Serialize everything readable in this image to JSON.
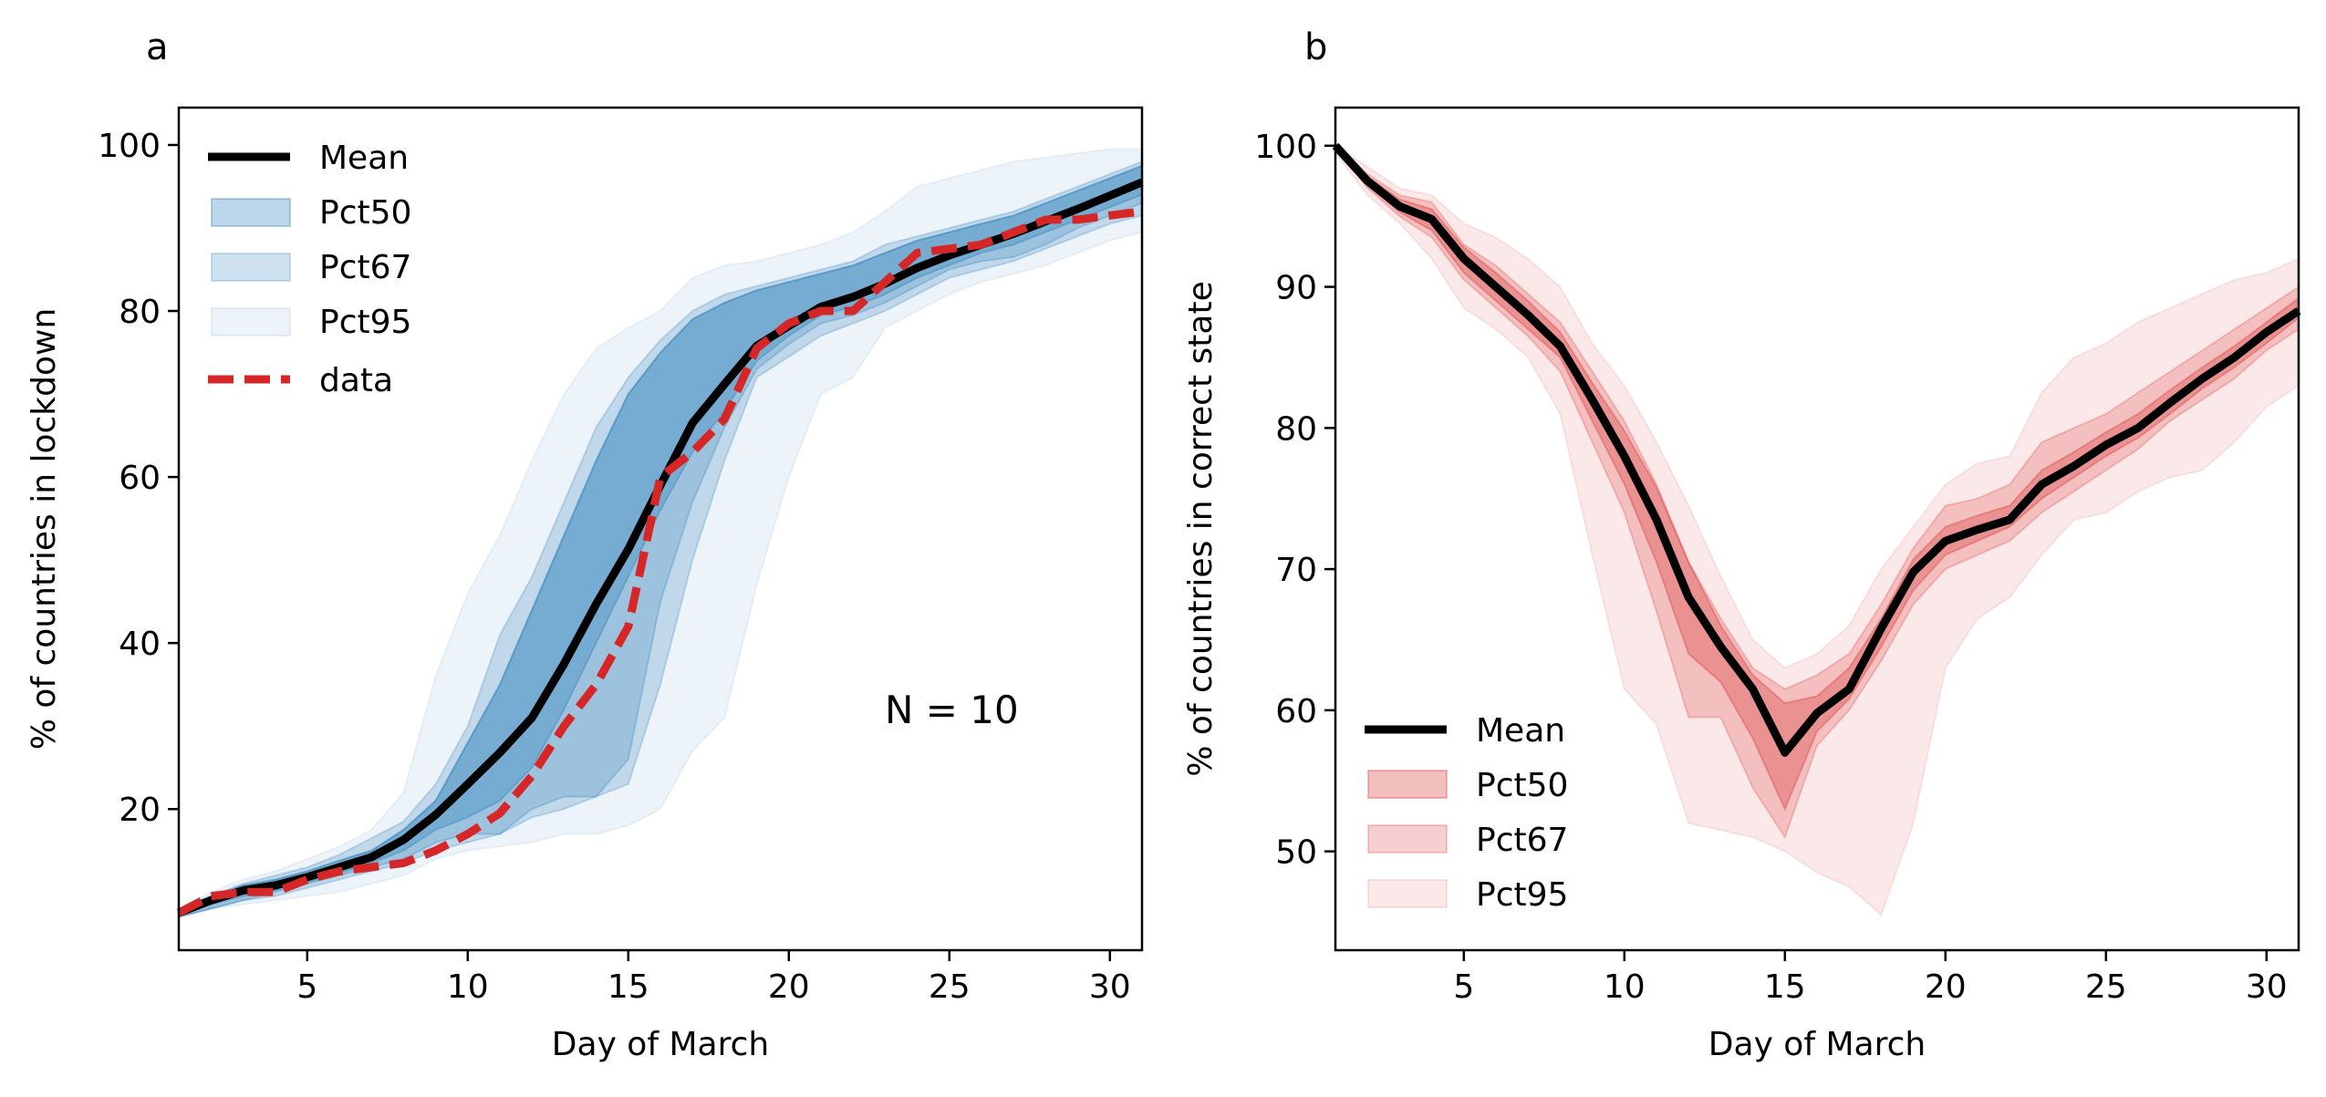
{
  "colors": {
    "mean": "#000000",
    "data_line": "#d62728",
    "blue_band": "#1f77b4",
    "red_band": "#d62728",
    "axes": "#000000"
  },
  "chart_data": [
    {
      "type": "area",
      "panel_label": "a",
      "xlabel": "Day of March",
      "ylabel": "% of countries in lockdown",
      "xlim": [
        1,
        31
      ],
      "ylim": [
        3,
        104.5
      ],
      "xticks": [
        5,
        10,
        15,
        20,
        25,
        30
      ],
      "yticks": [
        20,
        40,
        60,
        80,
        100
      ],
      "annotation": "N = 10",
      "legend_position": "upper-left",
      "band_color": "#1f77b4",
      "x": [
        1,
        2,
        3,
        4,
        5,
        6,
        7,
        8,
        9,
        10,
        11,
        12,
        13,
        14,
        15,
        16,
        17,
        18,
        19,
        20,
        21,
        22,
        23,
        24,
        25,
        26,
        27,
        28,
        29,
        30,
        31
      ],
      "mean": {
        "name": "Mean",
        "values": [
          7.5,
          9,
          10.2,
          10.8,
          11.8,
          13,
          14.2,
          16.3,
          19.3,
          23,
          26.8,
          31,
          37.5,
          44.7,
          51.3,
          59,
          66.5,
          71.2,
          75.8,
          78.2,
          80.5,
          81.7,
          83.3,
          85.2,
          86.7,
          88,
          89.3,
          90.8,
          92.3,
          93.9,
          95.5
        ]
      },
      "series": [
        {
          "name": "data",
          "values": [
            7.5,
            9.5,
            10,
            10,
            11.5,
            12.5,
            13,
            13.5,
            15,
            17,
            19.5,
            24,
            30,
            35,
            42,
            60,
            63,
            67,
            75.5,
            78.5,
            80,
            80,
            83.5,
            87,
            87.5,
            88,
            89.5,
            91,
            91,
            91.5,
            92
          ]
        }
      ],
      "bands": [
        {
          "name": "Pct95",
          "opacity": 0.08,
          "lower": [
            7,
            8,
            8.5,
            9,
            9.5,
            10,
            11,
            12,
            14,
            15,
            15.5,
            16,
            17,
            17,
            18,
            20,
            27,
            31,
            47,
            60,
            70,
            72,
            78,
            80,
            82,
            83.5,
            84.5,
            85.5,
            87,
            88.5,
            89.5
          ],
          "upper": [
            8,
            10,
            11.5,
            12.5,
            14,
            15.5,
            17.5,
            22,
            36,
            46,
            53,
            62,
            70,
            75.5,
            78,
            80,
            84,
            85.5,
            86,
            87,
            88,
            89.5,
            92,
            95,
            96,
            97,
            98,
            98.5,
            99,
            99.5,
            99.5
          ]
        },
        {
          "name": "Pct67",
          "opacity": 0.22,
          "lower": [
            7,
            8,
            9,
            9.5,
            10.5,
            11.5,
            12.5,
            13.5,
            15,
            16,
            17,
            19,
            20,
            21.5,
            23,
            35,
            50,
            62,
            72,
            74.5,
            77,
            78.5,
            80,
            82,
            84,
            85,
            86,
            87.5,
            89,
            90.5,
            91.5
          ],
          "upper": [
            8,
            9.5,
            11,
            12,
            13,
            14.5,
            16.5,
            18.5,
            23,
            30,
            41,
            48,
            57,
            66,
            72,
            76.5,
            80,
            82,
            83,
            84,
            85,
            86,
            88,
            89,
            90,
            91,
            92,
            93.5,
            95,
            96.5,
            98
          ]
        },
        {
          "name": "Pct50",
          "opacity": 0.3,
          "lower": [
            7,
            8,
            9,
            10,
            11,
            12,
            13,
            14,
            16,
            17,
            17,
            20,
            21.5,
            21.5,
            26,
            45,
            57,
            66,
            73,
            76,
            78.5,
            79.5,
            81,
            83,
            85,
            86,
            86.5,
            88,
            90,
            91.5,
            93
          ]
        },
        {
          "name": "Pct50-core",
          "opacity": 0.3,
          "lower": [
            7.2,
            8.5,
            9.5,
            10.2,
            11.2,
            12.3,
            13.5,
            15,
            17.5,
            19,
            21,
            25,
            32,
            40,
            48,
            56,
            63,
            68,
            74,
            77,
            79.5,
            80.5,
            82,
            84,
            85.5,
            87,
            88,
            89.5,
            91,
            92.5,
            94
          ],
          "upper": [
            7.8,
            9.5,
            10.8,
            11.5,
            12.5,
            13.8,
            15,
            17.5,
            21,
            28,
            35,
            44,
            53,
            62,
            70,
            75,
            79,
            81,
            82.5,
            83.5,
            84.5,
            85.5,
            87,
            88.5,
            89.5,
            90.5,
            91.5,
            93,
            94.5,
            96,
            97.5
          ]
        }
      ],
      "legend": [
        "Mean",
        "Pct50",
        "Pct67",
        "Pct95",
        "data"
      ]
    },
    {
      "type": "area",
      "panel_label": "b",
      "xlabel": "Day of March",
      "ylabel": "% of countries in correct state",
      "xlim": [
        1,
        31
      ],
      "ylim": [
        43,
        102.7
      ],
      "xticks": [
        5,
        10,
        15,
        20,
        25,
        30
      ],
      "yticks": [
        50,
        60,
        70,
        80,
        90,
        100
      ],
      "legend_position": "lower-left",
      "band_color": "#d62728",
      "x": [
        1,
        2,
        3,
        4,
        5,
        6,
        7,
        8,
        9,
        10,
        11,
        12,
        13,
        14,
        15,
        16,
        17,
        18,
        19,
        20,
        21,
        22,
        23,
        24,
        25,
        26,
        27,
        28,
        29,
        30,
        31
      ],
      "mean": {
        "name": "Mean",
        "values": [
          100,
          97.5,
          95.7,
          94.8,
          92,
          90,
          88,
          85.8,
          82,
          78,
          73.5,
          68,
          64.5,
          61.5,
          57,
          59.8,
          61.5,
          65.8,
          69.8,
          72,
          72.8,
          73.5,
          76,
          77.3,
          78.8,
          80,
          81.8,
          83.5,
          85,
          86.8,
          88.3
        ]
      },
      "bands": [
        {
          "name": "Pct95",
          "opacity": 0.1,
          "lower": [
            99.5,
            96.5,
            94.5,
            92,
            88.5,
            87,
            85,
            81,
            71,
            61.5,
            59,
            52,
            51.5,
            51,
            50,
            48.5,
            47.5,
            45.5,
            52,
            63,
            66.5,
            68,
            71,
            73.5,
            74,
            75.5,
            76.5,
            77,
            79,
            81.5,
            83
          ],
          "upper": [
            100,
            98.5,
            97,
            96.5,
            94.5,
            93.5,
            92,
            90,
            86,
            83,
            79,
            74.5,
            69.5,
            65,
            63,
            64,
            66,
            70,
            73,
            76,
            77.5,
            78,
            82.5,
            85,
            86,
            87.5,
            88.5,
            89.5,
            90.5,
            91,
            92
          ]
        },
        {
          "name": "Pct67",
          "opacity": 0.22,
          "lower": [
            99.8,
            97,
            95,
            93.5,
            90.5,
            88.5,
            86.5,
            84,
            79,
            74,
            67,
            59.5,
            59.5,
            54.5,
            51,
            57.5,
            60,
            63.5,
            67.5,
            70,
            71,
            72,
            74,
            75.5,
            77,
            78.5,
            80.5,
            82,
            83.5,
            85.5,
            87
          ],
          "upper": [
            100,
            98,
            96.5,
            96,
            93,
            91.5,
            89.5,
            87.5,
            84,
            80.5,
            76,
            70.5,
            66.5,
            63,
            61.5,
            62.5,
            64,
            67.5,
            71.5,
            74.5,
            75,
            76,
            79,
            80,
            81,
            82.5,
            84,
            85.5,
            87,
            88.5,
            90
          ]
        },
        {
          "name": "Pct50",
          "opacity": 0.3,
          "lower": [
            99.9,
            97.2,
            95.3,
            94,
            91,
            89,
            87,
            85,
            80.5,
            76,
            70.5,
            64,
            62,
            58,
            53,
            58.5,
            60.8,
            64.5,
            68.5,
            71,
            72,
            73,
            75,
            76.5,
            78,
            79.3,
            81,
            82.8,
            84.3,
            86,
            87.8
          ],
          "upper": [
            100,
            97.8,
            96.2,
            95.5,
            92.8,
            91,
            89,
            86.8,
            83.2,
            79.8,
            75.8,
            70.5,
            66,
            62.5,
            60.5,
            61,
            63,
            66.5,
            70.7,
            73,
            73.8,
            74.5,
            77,
            78.3,
            79.7,
            81,
            82.7,
            84.3,
            85.8,
            87.5,
            89.2
          ]
        }
      ],
      "legend": [
        "Mean",
        "Pct50",
        "Pct67",
        "Pct95"
      ]
    }
  ]
}
